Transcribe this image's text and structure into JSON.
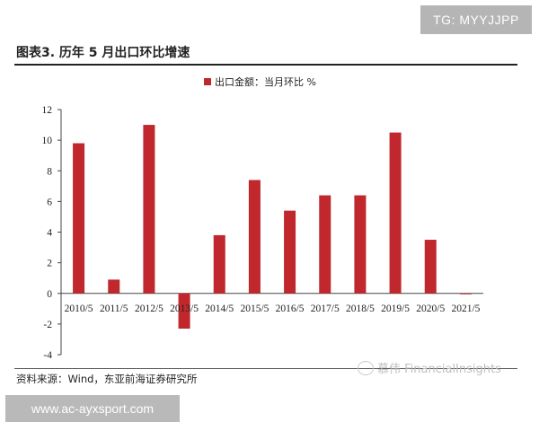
{
  "watermark_top": "TG: MYYJJPP",
  "watermark_bottom": "www.ac-ayxsport.com",
  "watermark_middle": "慕伟 FinancialInsights",
  "figure_title": "图表3.    历年 5 月出口环比增速",
  "source": "资料来源：Wind，东亚前海证券研究所",
  "colors": {
    "bar": "#c0282d"
  },
  "chart_data": {
    "type": "bar",
    "categories": [
      "2010/5",
      "2011/5",
      "2012/5",
      "2013/5",
      "2014/5",
      "2015/5",
      "2016/5",
      "2017/5",
      "2018/5",
      "2019/5",
      "2020/5",
      "2021/5"
    ],
    "series": [
      {
        "name": "出口金额：当月环比 %",
        "values": [
          9.8,
          0.9,
          11.0,
          -2.3,
          3.8,
          7.4,
          5.4,
          6.4,
          6.4,
          10.5,
          3.5,
          -0.05
        ]
      }
    ],
    "yticks": [
      -4,
      -2,
      0,
      2,
      4,
      6,
      8,
      10,
      12
    ],
    "ylim": [
      -4,
      12
    ],
    "grid": false,
    "legend_position": "top-center"
  }
}
